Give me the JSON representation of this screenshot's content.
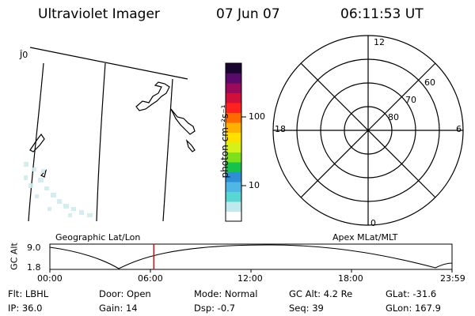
{
  "header": {
    "title": "Ultraviolet Imager",
    "date": "07 Jun 07",
    "time": "06:11:53 UT"
  },
  "colorbar": {
    "unit_label": "photon cm⁻²s⁻¹",
    "ticks": [
      "100",
      "10"
    ],
    "scale": "log",
    "colors": [
      "#ffffff",
      "#bfe9ec",
      "#57d6d4",
      "#4fb6e5",
      "#2f8fd6",
      "#17c24a",
      "#7ee01a",
      "#d6f01a",
      "#ffe000",
      "#ffb000",
      "#ff6a00",
      "#ff2020",
      "#d0103a",
      "#9a0a5a",
      "#5a0a6a",
      "#1a0530"
    ]
  },
  "geo_panel": {
    "label": "Geographic Lat/Lon",
    "corner_glyph": "Ĵ0"
  },
  "polar_panel": {
    "label": "Apex MLat/MLT",
    "mlt_labels": {
      "top": "12",
      "left": "18",
      "right": "6",
      "bottom": "0"
    },
    "lat_labels": [
      "60",
      "70",
      "80"
    ]
  },
  "altitude_plot": {
    "ylabel": "GC Alt",
    "yticks": [
      "9.0",
      "1.8"
    ],
    "xticks": [
      "00:00",
      "06:00",
      "12:00",
      "18:00",
      "23:59"
    ],
    "marker_time": "06:11:53",
    "marker_color": "#e00000"
  },
  "status": {
    "flt": "Flt: LBHL",
    "ip": "IP: 36.0",
    "door": "Door: Open",
    "gain": "Gain: 14",
    "mode": "Mode: Normal",
    "dsp": "Dsp:   -0.7",
    "gc_alt": "GC Alt: 4.2 Re",
    "seq": "Seq: 39",
    "glat": "GLat: -31.6",
    "glon": "GLon: 167.9"
  }
}
